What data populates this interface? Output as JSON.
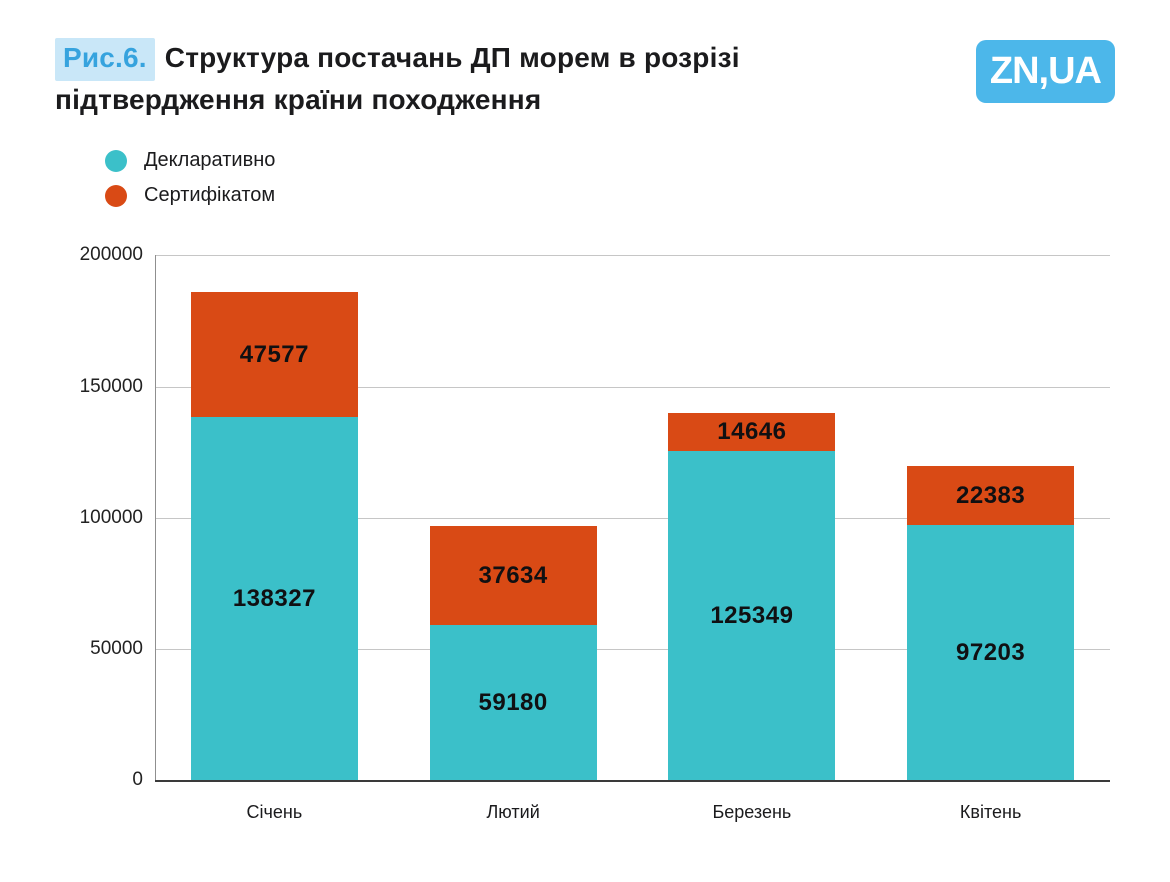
{
  "header": {
    "figure_label": "Рис.6.",
    "title": "Структура постачань ДП морем в розрізі підтвердження країни походження",
    "logo": "ZN,UA"
  },
  "chart_data": {
    "type": "bar",
    "stacked": true,
    "title": "Структура постачань ДП морем в розрізі підтвердження країни походження",
    "categories": [
      "Січень",
      "Лютий",
      "Березень",
      "Квітень"
    ],
    "series": [
      {
        "name": "Декларативно",
        "color": "#3bc0c9",
        "values": [
          138327,
          59180,
          125349,
          97203
        ]
      },
      {
        "name": "Сертифікатом",
        "color": "#d94a15",
        "values": [
          47577,
          37634,
          14646,
          22383
        ]
      }
    ],
    "yticks": [
      0,
      50000,
      100000,
      150000,
      200000
    ],
    "ylim": [
      0,
      200000
    ],
    "grid": true,
    "legend_position": "top-left",
    "value_labels": "inside-segments",
    "colors": {
      "declarative": "#3bc0c9",
      "certificate": "#d94a15",
      "logo_blue": "#4cb7ea",
      "badge_bg": "#c9e7f8",
      "badge_text": "#36a3de"
    }
  }
}
